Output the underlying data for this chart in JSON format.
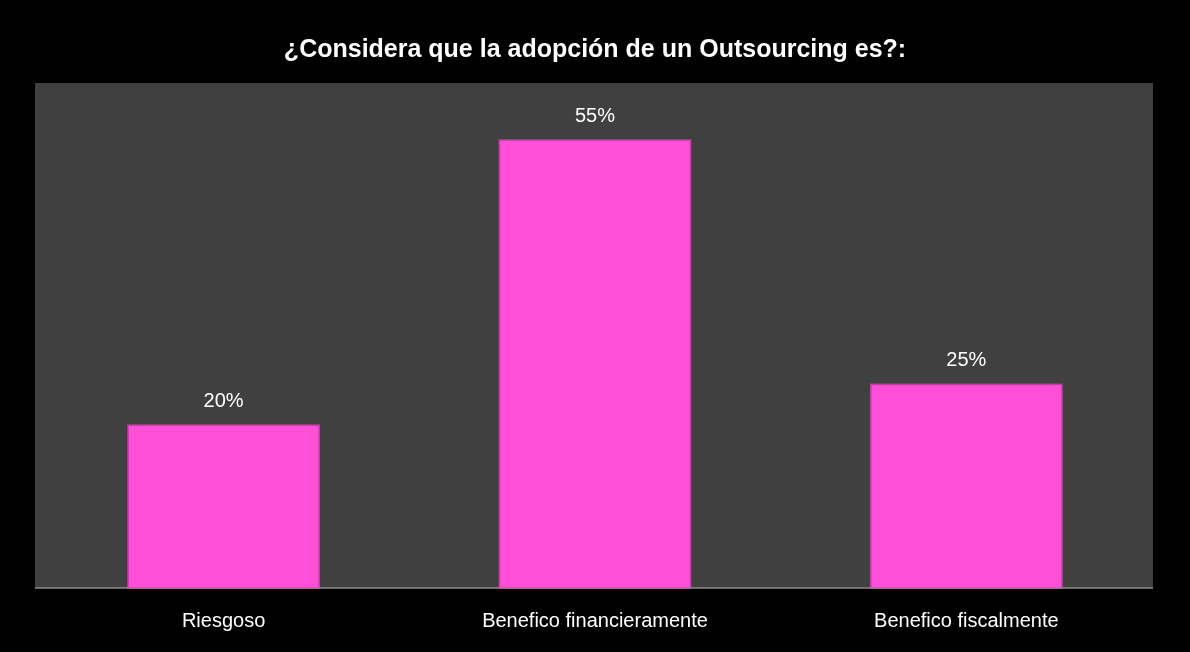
{
  "chart_data": {
    "type": "bar",
    "title": "¿Considera que la adopción de un Outsourcing es?:",
    "categories": [
      "Riesgoso",
      "Benefico financieramente",
      "Benefico fiscalmente"
    ],
    "values": [
      20,
      55,
      25
    ],
    "color": "#ff4fd8",
    "data_labels": true,
    "value_labels": [
      "20%",
      "55%",
      "25%"
    ]
  }
}
